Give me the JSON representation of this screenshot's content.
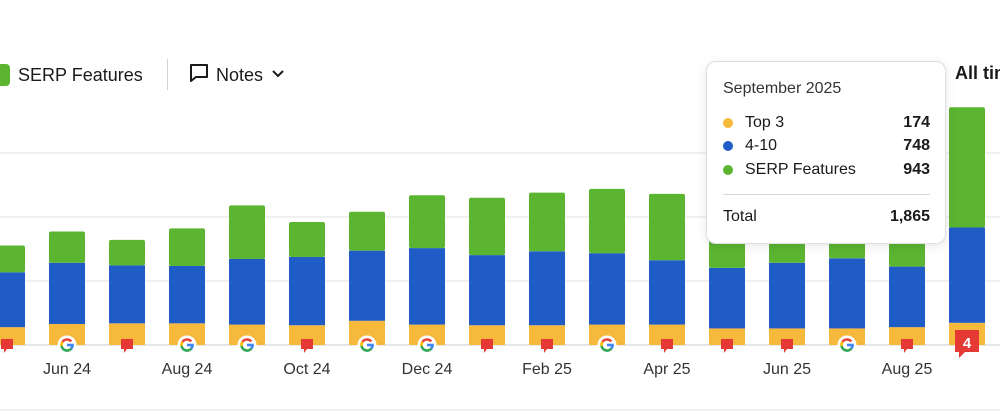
{
  "legend": {
    "serp_label": "SERP Features"
  },
  "toolbar": {
    "notes_label": "Notes",
    "range_label": "All time"
  },
  "colors": {
    "top3": "#f6b93b",
    "pos4_10": "#1f5cc6",
    "serp": "#5bb531",
    "grid": "#dde1e6",
    "flag": "#e53935"
  },
  "chart_data": {
    "type": "bar",
    "stacked": true,
    "categories": [
      "May 24",
      "Jun 24",
      "Jul 24",
      "Aug 24",
      "Sep 24",
      "Oct 24",
      "Nov 24",
      "Dec 24",
      "Jan 25",
      "Feb 25",
      "Mar 25",
      "Apr 25",
      "May 25",
      "Jun 25",
      "Jul 25",
      "Aug 25",
      "Sep 25"
    ],
    "series": [
      {
        "name": "Top 3",
        "values": [
          140,
          165,
          170,
          170,
          160,
          155,
          190,
          160,
          155,
          155,
          160,
          160,
          130,
          130,
          130,
          140,
          174
        ]
      },
      {
        "name": "4-10",
        "values": [
          430,
          480,
          455,
          450,
          515,
          535,
          550,
          600,
          550,
          580,
          560,
          505,
          475,
          515,
          550,
          475,
          748
        ]
      },
      {
        "name": "SERP Features",
        "values": [
          210,
          245,
          200,
          295,
          420,
          275,
          305,
          415,
          450,
          460,
          505,
          520,
          580,
          525,
          530,
          600,
          943
        ]
      }
    ],
    "x_tick_labels": [
      "Jun 24",
      "Aug 24",
      "Oct 24",
      "Dec 24",
      "Feb 25",
      "Apr 25",
      "Jun 25",
      "Aug 25"
    ],
    "grid": true,
    "annotations": [
      {
        "category": "May 24",
        "type": "note"
      },
      {
        "category": "Jun 24",
        "type": "google-update"
      },
      {
        "category": "Jul 24",
        "type": "note"
      },
      {
        "category": "Aug 24",
        "type": "google-update"
      },
      {
        "category": "Sep 24",
        "type": "google-update"
      },
      {
        "category": "Oct 24",
        "type": "note"
      },
      {
        "category": "Nov 24",
        "type": "google-update"
      },
      {
        "category": "Dec 24",
        "type": "google-update"
      },
      {
        "category": "Jan 25",
        "type": "note"
      },
      {
        "category": "Feb 25",
        "type": "note"
      },
      {
        "category": "Mar 25",
        "type": "google-update"
      },
      {
        "category": "Apr 25",
        "type": "note"
      },
      {
        "category": "May 25",
        "type": "note"
      },
      {
        "category": "Jun 25",
        "type": "note"
      },
      {
        "category": "Jul 25",
        "type": "google-update"
      },
      {
        "category": "Aug 25",
        "type": "note"
      },
      {
        "category": "Sep 25",
        "type": "note-count",
        "label": "4"
      }
    ]
  },
  "tooltip": {
    "title": "September 2025",
    "rows": [
      {
        "name": "Top 3",
        "value": "174"
      },
      {
        "name": "4-10",
        "value": "748"
      },
      {
        "name": "SERP Features",
        "value": "943"
      }
    ],
    "total_label": "Total",
    "total_value": "1,865"
  }
}
